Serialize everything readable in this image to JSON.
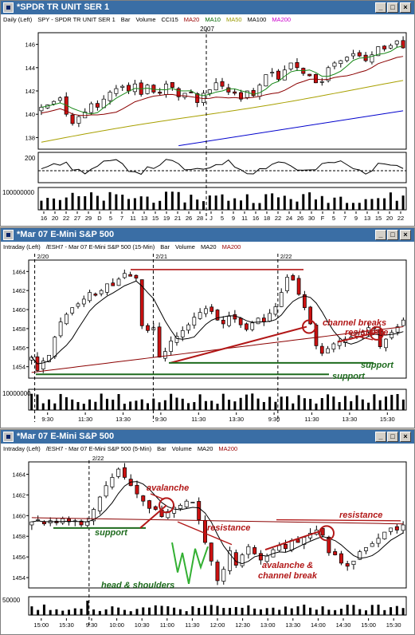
{
  "windows": [
    {
      "title": "*SPDR TR UNIT SER 1",
      "info": [
        "Daily (Left)",
        "SPY - SPDR TR UNIT SER 1",
        "Bar",
        "Volume",
        "CCI15",
        "MA20",
        "MA10",
        "MA50",
        "MA100",
        "MA200"
      ],
      "info_colors": [
        "#000000",
        "#000000",
        "#000000",
        "#000000",
        "#000000",
        "#990000",
        "#006600",
        "#999900",
        "#000000",
        "#cc00cc"
      ]
    },
    {
      "title": "*Mar 07  E-Mini S&P 500",
      "info": [
        "Intraday (Left)",
        "/ESH7 - Mar 07  E-Mini S&P 500 (15-Min)",
        "Bar",
        "Volume",
        "MA20",
        "MA200"
      ],
      "info_colors": [
        "#000000",
        "#000000",
        "#000000",
        "#000000",
        "#000000",
        "#990000"
      ]
    },
    {
      "title": "*Mar 07  E-Mini S&P 500",
      "info": [
        "Intraday (Left)",
        "/ESH7 - Mar 07  E-Mini S&P 500 (5-Min)",
        "Bar",
        "Volume",
        "MA20",
        "MA200"
      ],
      "info_colors": [
        "#000000",
        "#000000",
        "#000000",
        "#000000",
        "#000000",
        "#990000"
      ]
    }
  ],
  "chart_data": [
    {
      "type": "candlestick",
      "title": "SPY - SPDR TR UNIT SER 1",
      "period": "Daily",
      "year_label": "2007",
      "y_ticks": [
        138,
        140,
        142,
        144,
        146
      ],
      "ylim": [
        137,
        147
      ],
      "x_ticks": [
        "16",
        "20",
        "22",
        "27",
        "29",
        "D",
        "5",
        "7",
        "11",
        "13",
        "15",
        "19",
        "21",
        "26",
        "28",
        "J",
        "5",
        "9",
        "11",
        "16",
        "18",
        "22",
        "24",
        "26",
        "30",
        "F",
        "5",
        "7",
        "9",
        "13",
        "15",
        "20",
        "22"
      ],
      "close": [
        140.6,
        140.8,
        141.1,
        141.4,
        140.0,
        139.2,
        139.8,
        140.2,
        140.9,
        140.6,
        141.3,
        141.9,
        142.2,
        142.4,
        142.0,
        142.6,
        141.7,
        142.5,
        141.9,
        141.8,
        142.6,
        142.3,
        141.5,
        141.8,
        141.9,
        141.0,
        141.8,
        142.1,
        142.7,
        142.4,
        141.9,
        141.8,
        141.3,
        142.0,
        141.6,
        142.5,
        143.4,
        143.6,
        143.0,
        143.8,
        144.4,
        144.0,
        143.5,
        143.3,
        142.7,
        142.8,
        144.0,
        144.4,
        144.6,
        144.9,
        145.2,
        145.0,
        144.6,
        145.1,
        145.8,
        145.6,
        145.9,
        146.3,
        145.7
      ],
      "indicators": [
        "MA20",
        "MA10",
        "MA50",
        "MA100",
        "CCI15"
      ],
      "cci_label": "200",
      "volume_label": "100000000"
    },
    {
      "type": "candlestick",
      "title": "/ESH7 - Mar 07 E-Mini S&P 500 (15-Min)",
      "period": "15-Min",
      "date_labels": [
        "2/20",
        "2/21",
        "2/22"
      ],
      "y_ticks": [
        1454,
        1456,
        1458,
        1460,
        1462,
        1464
      ],
      "ylim": [
        1452.8,
        1465.2
      ],
      "x_ticks": [
        "9:30",
        "11:30",
        "13:30",
        "9:30",
        "11:30",
        "13:30",
        "9:30",
        "11:30",
        "13:30",
        "15:30"
      ],
      "close": [
        1455.0,
        1453.6,
        1454.6,
        1455.2,
        1457.1,
        1458.7,
        1459.5,
        1460.2,
        1460.6,
        1461.1,
        1461.8,
        1461.5,
        1462.0,
        1462.7,
        1462.5,
        1463.2,
        1463.8,
        1463.5,
        1463.3,
        1458.3,
        1457.8,
        1458.1,
        1455.0,
        1455.6,
        1456.7,
        1457.2,
        1457.8,
        1458.4,
        1459.2,
        1459.7,
        1460.1,
        1459.8,
        1458.9,
        1458.5,
        1459.3,
        1459.0,
        1458.4,
        1457.9,
        1458.6,
        1459.1,
        1458.7,
        1459.6,
        1460.3,
        1461.8,
        1463.4,
        1463.1,
        1461.6,
        1460.2,
        1458.5,
        1456.2,
        1455.4,
        1455.9,
        1456.4,
        1456.7,
        1456.9,
        1457.1,
        1457.5,
        1457.6,
        1458.1,
        1458.0,
        1456.1,
        1456.9,
        1457.6,
        1458.2,
        1458.9
      ],
      "indicators": [
        "MA20",
        "MA200"
      ],
      "volume_label": "10000000"
    },
    {
      "type": "candlestick",
      "title": "/ESH7 - Mar 07 E-Mini S&P 500 (5-Min)",
      "period": "5-Min",
      "date_labels": [
        "2/22"
      ],
      "y_ticks": [
        1454,
        1456,
        1458,
        1460,
        1462,
        1464
      ],
      "ylim": [
        1453,
        1465.2
      ],
      "x_ticks": [
        "15:00",
        "15:30",
        "9:30",
        "10:00",
        "10:30",
        "11:00",
        "11:30",
        "12:00",
        "12:30",
        "13:00",
        "13:30",
        "14:00",
        "14:30",
        "15:00",
        "15:30"
      ],
      "close": [
        1459.4,
        1459.6,
        1459.2,
        1459.5,
        1459.3,
        1459.7,
        1459.4,
        1459.5,
        1459.1,
        1459.4,
        1460.6,
        1461.8,
        1462.9,
        1463.7,
        1464.5,
        1463.7,
        1462.9,
        1462.1,
        1461.4,
        1460.7,
        1460.6,
        1459.9,
        1460.4,
        1460.8,
        1461.0,
        1461.4,
        1461.3,
        1459.6,
        1457.4,
        1455.6,
        1453.7,
        1454.8,
        1456.6,
        1455.2,
        1456.2,
        1457.0,
        1456.3,
        1455.7,
        1456.1,
        1456.7,
        1457.1,
        1456.8,
        1457.6,
        1457.4,
        1457.9,
        1458.3,
        1458.6,
        1458.1,
        1456.4,
        1456.2,
        1455.4,
        1455.1,
        1455.6,
        1456.5,
        1456.9,
        1457.3,
        1457.8,
        1458.4,
        1458.8,
        1458.6,
        1459.1
      ],
      "indicators": [
        "MA20",
        "MA200"
      ],
      "volume_label": "50000"
    }
  ],
  "annotations": {
    "chart2": [
      "channel breaks",
      "resistance",
      "support",
      "support"
    ],
    "chart3": [
      "avalanche",
      "support",
      "resistance",
      "resistance",
      "avalanche &",
      "channel break",
      "head & shoulders"
    ]
  },
  "colors": {
    "title_bar": "#3a6ea5",
    "up_candle": "#ffffff",
    "down_candle": "#cc1111",
    "annotation_red": "#b21818",
    "annotation_green": "#1e6b1e",
    "ma_green": "#1a8a1a",
    "ma_red": "#8b0000",
    "ma_olive": "#a8a000",
    "ma_blue": "#0000cc"
  }
}
